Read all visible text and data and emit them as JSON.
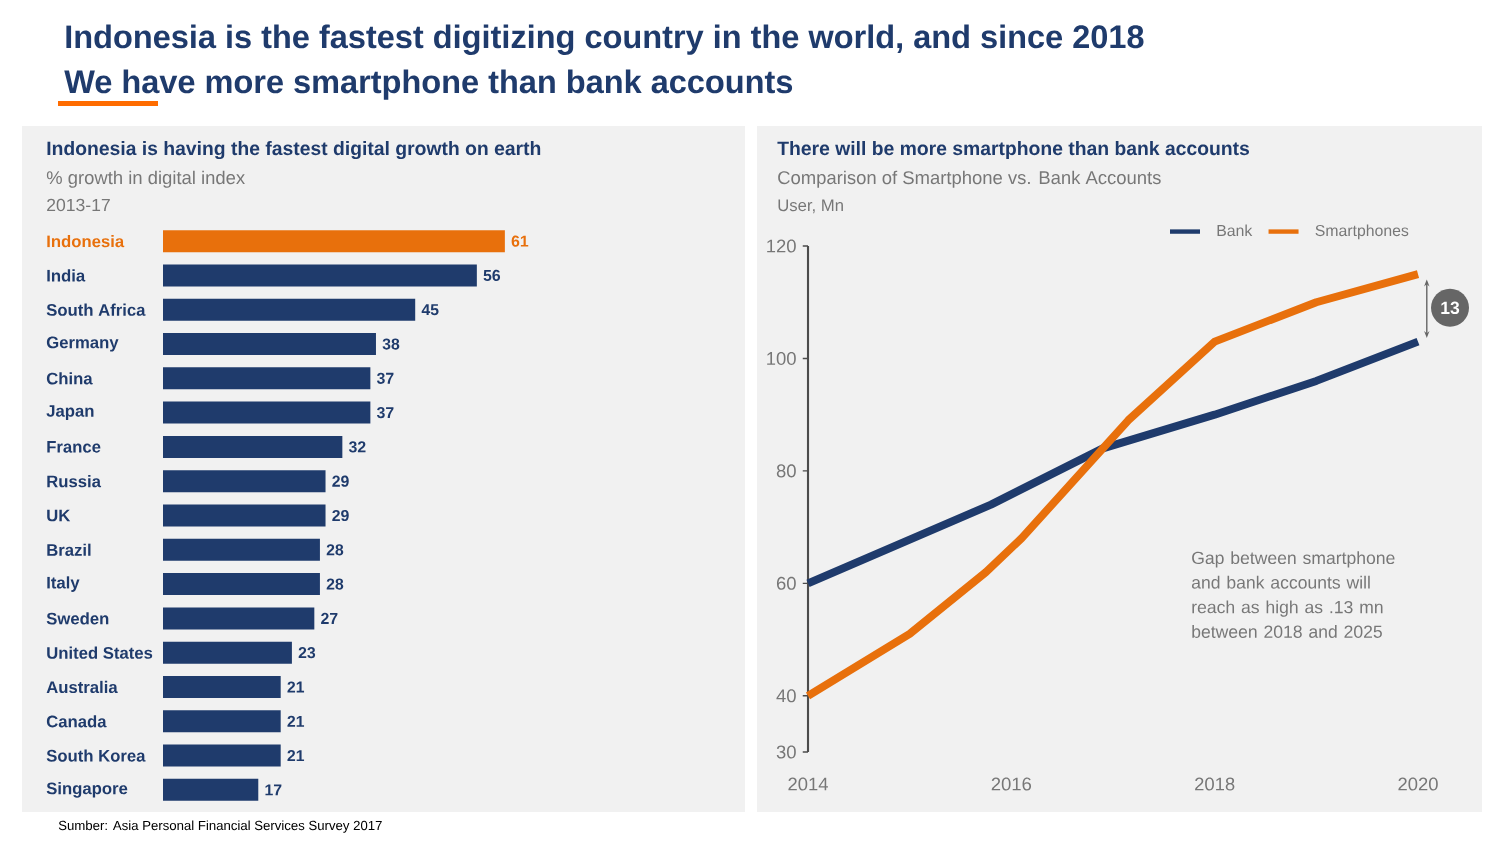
{
  "chart_data": [
    {
      "type": "bar",
      "orientation": "horizontal",
      "title": "Indonesia is having the fastest digital growth on earth",
      "subtitle": "% growth in digital index",
      "categories": [
        "Indonesia",
        "India",
        "South Africa",
        "Germany",
        "China",
        "Japan",
        "France",
        "Russia",
        "UK",
        "Brazil",
        "Italy",
        "Sweden",
        "United States",
        "Australia",
        "Canada",
        "South Korea",
        "Singapore"
      ],
      "values": [
        61,
        56,
        45,
        38,
        37,
        37,
        32,
        29,
        29,
        28,
        28,
        27,
        23,
        21,
        21,
        21,
        17
      ],
      "colors": [
        "#e8700c",
        "#1f3b6c",
        "#1f3b6c",
        "#1f3b6c",
        "#1f3b6c",
        "#1f3b6c",
        "#1f3b6c",
        "#1f3b6c",
        "#1f3b6c",
        "#1f3b6c",
        "#1f3b6c",
        "#1f3b6c",
        "#1f3b6c",
        "#1f3b6c",
        "#1f3b6c",
        "#1f3b6c",
        "#1f3b6c"
      ],
      "data_labels": true,
      "tick_labels": "y",
      "annotations": [
        "Indonesia is the fastest digitizing country in the world, and since 2018",
        "We have more smartphone than bank accounts",
        "2013-17",
        "Sumber: Asia Personal Financial Services Survey 2017"
      ]
    },
    {
      "type": "line",
      "title": "There will be more smartphone than bank accounts",
      "subtitle": "Comparison of Smartphone vs. Bank Accounts",
      "ylabel": "User, Mn",
      "series": [
        {
          "name": "Bank",
          "color": "#1f3b6c",
          "x": [
            2014,
            2015.8,
            2016.9,
            2018,
            2019,
            2020
          ],
          "values": [
            60,
            74,
            84,
            90,
            96,
            103
          ]
        },
        {
          "name": "Smartphones",
          "color": "#e8700c",
          "x": [
            2014,
            2015,
            2015.75,
            2016.1,
            2017.15,
            2018,
            2019,
            2020
          ],
          "values": [
            40,
            51,
            62,
            68,
            89,
            103,
            110,
            115
          ]
        }
      ],
      "xlim": [
        2014,
        2020
      ],
      "ylim": [
        30,
        120
      ],
      "xticks": [
        2014,
        2016,
        2018,
        2020
      ],
      "yticks": [
        30,
        40,
        60,
        80,
        100,
        120
      ],
      "legend": "top right",
      "line_style": "solid",
      "marker": "none",
      "annotations": [
        "Gap between smartphone and bank accounts will reach as high as .13 mn between 2018 and 2025",
        "13"
      ]
    }
  ]
}
